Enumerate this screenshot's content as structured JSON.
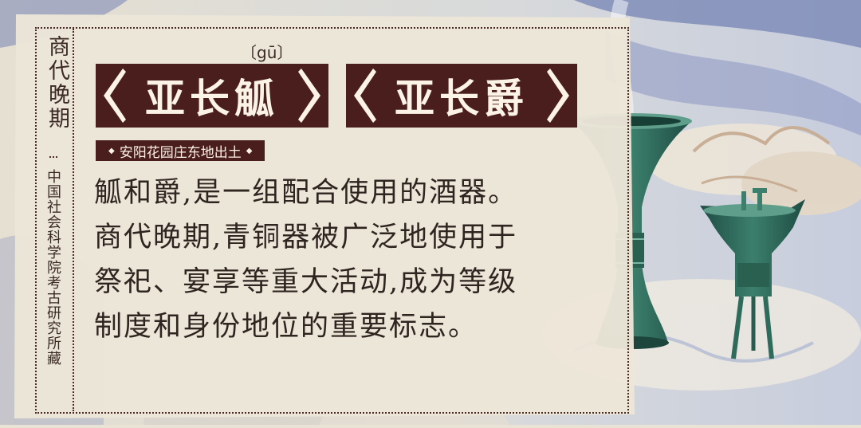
{
  "period": "商代晚期",
  "institution": "中国社会科学院考古研究所藏",
  "pinyin": "〔gū〕",
  "names": [
    "亚长觚",
    "亚长爵"
  ],
  "location": "安阳花园庄东地出土",
  "body_lines": [
    "觚和爵,是一组配合使用的酒器。",
    "商代晚期,青铜器被广泛地使用于",
    "祭祀、宴享等重大活动,成为等级",
    "制度和身份地位的重要标志。"
  ],
  "colors": {
    "accent": "#4b1e1e",
    "paper": "#e9e3d6",
    "bronze": "#2f6b5b",
    "text": "#2f2520"
  },
  "illustration": {
    "objects": [
      "bronze-gu-vessel",
      "bronze-jue-vessel",
      "cloud-scroll-background"
    ]
  }
}
